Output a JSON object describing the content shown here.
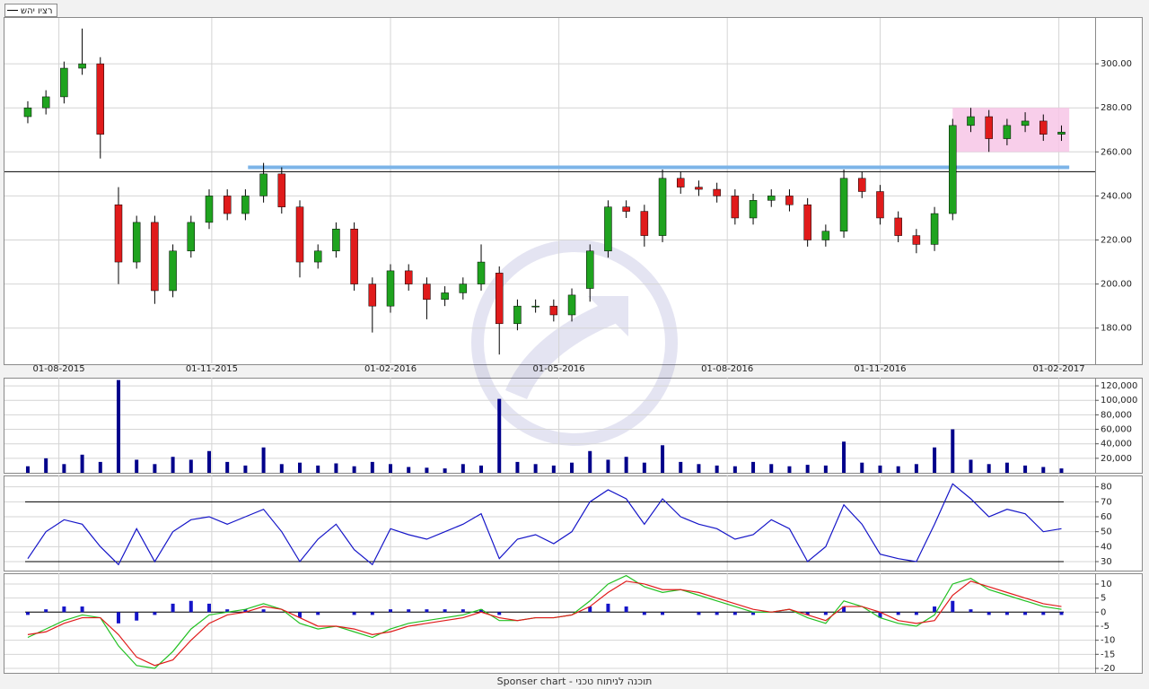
{
  "chart_data": [
    {
      "type": "candlestick",
      "legend_label": "רציו יהש",
      "up_color": "#1fa31f",
      "down_color": "#e01b1b",
      "xlim": [
        -9,
        412
      ],
      "xticks": [
        {
          "value": 12,
          "label": "01-08-2015"
        },
        {
          "value": 71,
          "label": "01-11-2015"
        },
        {
          "value": 140,
          "label": "01-02-2016"
        },
        {
          "value": 205,
          "label": "01-05-2016"
        },
        {
          "value": 270,
          "label": "01-08-2016"
        },
        {
          "value": 329,
          "label": "01-11-2016"
        },
        {
          "value": 398,
          "label": "01-02-2017"
        }
      ],
      "ylim": [
        164,
        320
      ],
      "yticks": [
        {
          "value": 180,
          "label": "180.00"
        },
        {
          "value": 200,
          "label": "200.00"
        },
        {
          "value": 220,
          "label": "220.00"
        },
        {
          "value": 240,
          "label": "240.00"
        },
        {
          "value": 260,
          "label": "260.00"
        },
        {
          "value": 280,
          "label": "280.00"
        },
        {
          "value": 300,
          "label": "300.00"
        }
      ],
      "grid": true,
      "x": [
        0,
        7,
        14,
        21,
        28,
        35,
        42,
        49,
        56,
        63,
        70,
        77,
        84,
        91,
        98,
        105,
        112,
        119,
        126,
        133,
        140,
        147,
        154,
        161,
        168,
        175,
        182,
        189,
        196,
        203,
        210,
        217,
        224,
        231,
        238,
        245,
        252,
        259,
        266,
        273,
        280,
        287,
        294,
        301,
        308,
        315,
        322,
        329,
        336,
        343,
        350,
        357,
        364,
        371,
        378,
        385,
        392,
        399
      ],
      "open": [
        276,
        280,
        285,
        298,
        300,
        236,
        210,
        228,
        197,
        215,
        228,
        240,
        232,
        240,
        250,
        235,
        210,
        215,
        225,
        200,
        190,
        206,
        200,
        193,
        196,
        200,
        205,
        182,
        190,
        190,
        186,
        198,
        215,
        235,
        233,
        222,
        248,
        244,
        243,
        240,
        230,
        238,
        240,
        236,
        220,
        224,
        248,
        242,
        230,
        222,
        218,
        232,
        272,
        276,
        266,
        272,
        274,
        268
      ],
      "high": [
        283,
        288,
        301,
        316,
        303,
        244,
        231,
        231,
        218,
        231,
        243,
        243,
        243,
        255,
        253,
        238,
        218,
        228,
        228,
        203,
        209,
        209,
        203,
        199,
        203,
        218,
        208,
        193,
        193,
        193,
        198,
        218,
        238,
        238,
        236,
        252,
        251,
        247,
        246,
        243,
        241,
        243,
        243,
        239,
        227,
        252,
        251,
        245,
        233,
        225,
        235,
        275,
        280,
        279,
        275,
        278,
        277,
        272
      ],
      "low": [
        273,
        277,
        282,
        295,
        257,
        200,
        207,
        191,
        194,
        212,
        225,
        229,
        229,
        237,
        232,
        203,
        207,
        212,
        197,
        178,
        187,
        197,
        184,
        190,
        193,
        197,
        168,
        179,
        187,
        183,
        183,
        192,
        212,
        230,
        217,
        219,
        241,
        240,
        237,
        227,
        227,
        235,
        233,
        217,
        217,
        221,
        239,
        227,
        219,
        214,
        215,
        229,
        269,
        260,
        263,
        269,
        265,
        265
      ],
      "close": [
        280,
        285,
        298,
        300,
        268,
        210,
        228,
        197,
        215,
        228,
        240,
        232,
        240,
        250,
        235,
        210,
        215,
        225,
        200,
        190,
        206,
        200,
        193,
        196,
        200,
        210,
        182,
        190,
        190,
        186,
        195,
        215,
        235,
        233,
        222,
        248,
        244,
        243,
        240,
        230,
        238,
        240,
        236,
        220,
        224,
        248,
        242,
        230,
        222,
        218,
        232,
        272,
        276,
        266,
        272,
        274,
        268,
        269
      ],
      "hlines": [
        {
          "value": 253,
          "color": "#7cb4e8",
          "x": [
            85,
            402
          ]
        },
        {
          "value": 251,
          "color": "#000000"
        }
      ],
      "highlight": {
        "x": [
          357,
          402
        ],
        "y": [
          260,
          280
        ],
        "color": "#f7c6e6"
      }
    },
    {
      "type": "bar",
      "color": "#00008b",
      "ylim": [
        0,
        130000
      ],
      "yticks": [
        {
          "value": 20000,
          "label": "20,000"
        },
        {
          "value": 40000,
          "label": "40,000"
        },
        {
          "value": 60000,
          "label": "60,000"
        },
        {
          "value": 80000,
          "label": "80,000"
        },
        {
          "value": 100000,
          "label": "100,000"
        },
        {
          "value": 120000,
          "label": "120,000"
        }
      ],
      "grid": true,
      "values": [
        9000,
        20000,
        12000,
        25000,
        15000,
        128000,
        18000,
        12000,
        22000,
        18000,
        30000,
        15000,
        10000,
        35000,
        12000,
        14000,
        10000,
        13000,
        9000,
        15000,
        12000,
        8000,
        7000,
        6000,
        12000,
        10000,
        102000,
        15000,
        12000,
        10000,
        14000,
        30000,
        18000,
        22000,
        14000,
        38000,
        15000,
        12000,
        10000,
        9000,
        15000,
        12000,
        9000,
        11000,
        10000,
        43000,
        14000,
        10000,
        9000,
        12000,
        35000,
        60000,
        18000,
        12000,
        14000,
        10000,
        8000,
        6000
      ]
    },
    {
      "type": "line",
      "color": "#1515c8",
      "ylim": [
        24,
        87
      ],
      "yticks": [
        30,
        40,
        50,
        60,
        70,
        80
      ],
      "grid": true,
      "levels": [
        70,
        30
      ],
      "values": [
        32,
        50,
        58,
        55,
        40,
        28,
        52,
        30,
        50,
        58,
        60,
        55,
        60,
        65,
        50,
        30,
        45,
        55,
        38,
        28,
        52,
        48,
        45,
        50,
        55,
        62,
        32,
        45,
        48,
        42,
        50,
        70,
        78,
        72,
        55,
        72,
        60,
        55,
        52,
        45,
        48,
        58,
        52,
        30,
        40,
        68,
        55,
        35,
        32,
        30,
        55,
        82,
        72,
        60,
        65,
        62,
        50,
        52
      ]
    },
    {
      "type": "macd",
      "hist_color": "#1515c8",
      "macd_color": "#22c022",
      "signal_color": "#e01b1b",
      "ylim": [
        -21.6,
        13.5
      ],
      "yticks": [
        -20,
        -15,
        -10,
        -5,
        0,
        5,
        10
      ],
      "grid": true,
      "hist": [
        -1,
        1,
        2,
        2,
        0,
        -4,
        -3,
        -1,
        3,
        4,
        3,
        1,
        1,
        1,
        0,
        -2,
        -1,
        0,
        -1,
        -1,
        1,
        1,
        1,
        1,
        1,
        1,
        -1,
        0,
        0,
        0,
        0,
        2,
        3,
        2,
        -1,
        -1,
        0,
        -1,
        -1,
        -1,
        -1,
        0,
        0,
        -1,
        -1,
        2,
        0,
        -2,
        -1,
        -1,
        2,
        4,
        1,
        -1,
        -1,
        -1,
        -1,
        -1
      ],
      "macd": [
        -9,
        -6,
        -3,
        -1,
        -2,
        -12,
        -19,
        -20,
        -14,
        -6,
        -1,
        0,
        1,
        3,
        1,
        -4,
        -6,
        -5,
        -7,
        -9,
        -6,
        -4,
        -3,
        -2,
        -1,
        1,
        -3,
        -3,
        -2,
        -2,
        -1,
        4,
        10,
        13,
        9,
        7,
        8,
        6,
        4,
        2,
        0,
        0,
        1,
        -2,
        -4,
        4,
        2,
        -2,
        -4,
        -5,
        -1,
        10,
        12,
        8,
        6,
        4,
        2,
        1
      ],
      "signal": [
        -8,
        -7,
        -4,
        -2,
        -2,
        -8,
        -16,
        -19,
        -17,
        -10,
        -4,
        -1,
        0,
        2,
        1,
        -2,
        -5,
        -5,
        -6,
        -8,
        -7,
        -5,
        -4,
        -3,
        -2,
        0,
        -2,
        -3,
        -2,
        -2,
        -1,
        2,
        7,
        11,
        10,
        8,
        8,
        7,
        5,
        3,
        1,
        0,
        1,
        -1,
        -3,
        2,
        2,
        0,
        -3,
        -4,
        -3,
        6,
        11,
        9,
        7,
        5,
        3,
        2
      ]
    }
  ],
  "footer": "Sponser chart - תוכנה לניתוח טכני"
}
